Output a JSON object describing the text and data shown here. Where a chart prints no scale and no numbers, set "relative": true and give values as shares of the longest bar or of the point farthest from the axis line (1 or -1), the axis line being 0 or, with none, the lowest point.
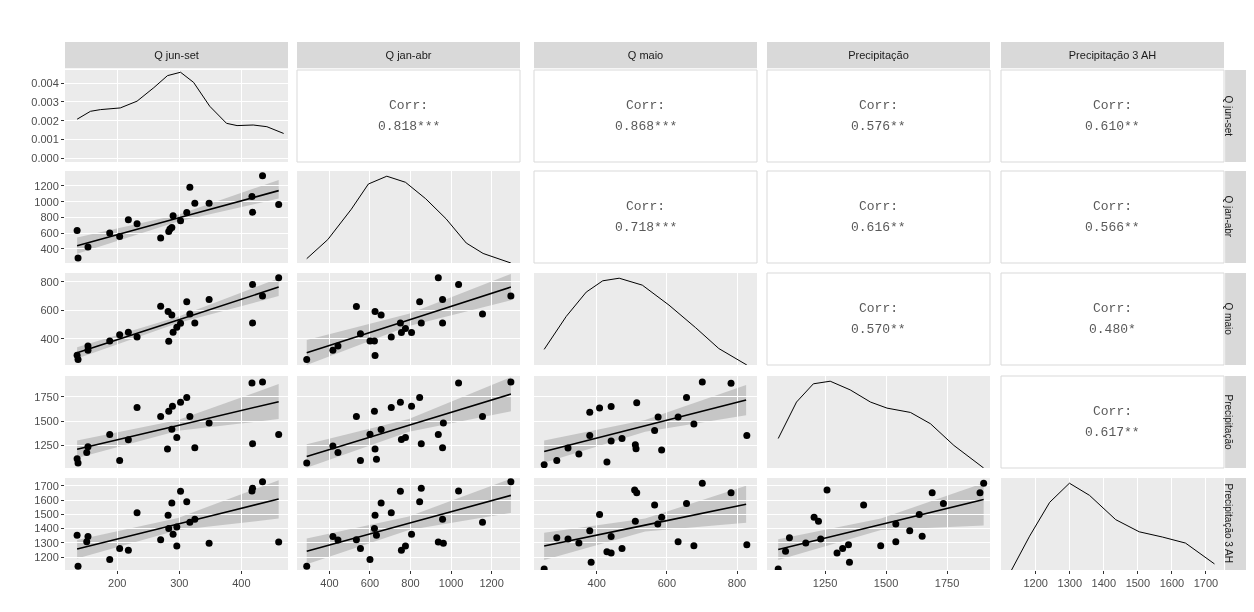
{
  "chart_data": [
    {
      "type": "line",
      "title": "Q jun-set",
      "xlim": [
        116,
        475
      ],
      "xticks": [
        200,
        300,
        400
      ],
      "ylim": [
        -0.0002,
        0.0047
      ],
      "yticks": [
        {
          "value": 0,
          "label": "0.000"
        },
        0.001,
        0.002,
        0.003,
        0.004
      ],
      "tick_labels": "y",
      "grid": true,
      "color": "#000000",
      "x": [
        135.5,
        157,
        173,
        205,
        232,
        259,
        281,
        302,
        323,
        349,
        376,
        393,
        419,
        441,
        468
      ],
      "values": [
        0.00208,
        0.0025,
        0.00259,
        0.00268,
        0.00304,
        0.00376,
        0.0044,
        0.00458,
        0.00404,
        0.00277,
        0.00186,
        0.00174,
        0.00177,
        0.00168,
        0.00132
      ]
    },
    {
      "type": "other",
      "title": "Q jan-abr",
      "annotations": [
        "Corr:",
        "0.818***"
      ]
    },
    {
      "type": "other",
      "title": "Q maio",
      "annotations": [
        "Corr:",
        "0.868***"
      ]
    },
    {
      "type": "other",
      "title": "Precipitação",
      "annotations": [
        "Corr:",
        "0.576**"
      ]
    },
    {
      "type": "other",
      "title": "Precipitação 3 AH",
      "y2label": "Q jun-set",
      "annotations": [
        "Corr:",
        "0.610**"
      ]
    },
    {
      "type": "scatter",
      "xlim": [
        116,
        475
      ],
      "xticks": [
        200,
        300,
        400
      ],
      "ylim": [
        222,
        1390
      ],
      "yticks": [
        400,
        600,
        800,
        1000,
        1200
      ],
      "tick_labels": "y",
      "grid": true,
      "series": [
        {
          "type": "scatter",
          "marker": "circle",
          "color": "#000000",
          "x": [
            135.5,
            137,
            153,
            188,
            204,
            218,
            232,
            270,
            283,
            285,
            288,
            290,
            302,
            312,
            317,
            325,
            348,
            418,
            417,
            434,
            460
          ],
          "values": [
            636,
            286,
            425,
            602,
            560,
            770,
            720,
            539,
            623,
            653,
            674,
            821,
            758,
            863,
            1183,
            981,
            981,
            867,
            1065,
            1330,
            964
          ]
        },
        {
          "type": "line",
          "color": "#000000",
          "x": [
            135.5,
            298,
            460
          ],
          "values": [
            442,
            792,
            1141
          ],
          "lower": [
            340,
            750,
            1040
          ],
          "upper": [
            545,
            835,
            1275
          ]
        }
      ]
    },
    {
      "type": "line",
      "xlim": [
        240,
        1340
      ],
      "xticks": [
        400,
        600,
        800,
        1000,
        1200
      ],
      "relative": true,
      "tick_labels": false,
      "grid": "x",
      "color": "#000000",
      "x": [
        288,
        392,
        508,
        592,
        683,
        775,
        875,
        975,
        1075,
        1158,
        1295
      ],
      "values": [
        0.05,
        0.27,
        0.62,
        0.91,
        1,
        0.93,
        0.74,
        0.51,
        0.23,
        0.11,
        0
      ]
    },
    {
      "type": "other",
      "annotations": [
        "Corr:",
        "0.718***"
      ]
    },
    {
      "type": "other",
      "annotations": [
        "Corr:",
        "0.616**"
      ]
    },
    {
      "type": "other",
      "y2label": "Q jan-abr",
      "annotations": [
        "Corr:",
        "0.566**"
      ]
    },
    {
      "type": "scatter",
      "xlim": [
        116,
        475
      ],
      "xticks": [
        200,
        300,
        400
      ],
      "ylim": [
        215,
        862
      ],
      "yticks": [
        400,
        600,
        800
      ],
      "tick_labels": "y",
      "grid": true,
      "series": [
        {
          "type": "scatter",
          "marker": "circle",
          "color": "#000000",
          "x": [
            135.5,
            137,
            153,
            153,
            188,
            204,
            218,
            232,
            270,
            282,
            288,
            283,
            290,
            296,
            302,
            312,
            317,
            325,
            348,
            418,
            418,
            434,
            460
          ],
          "values": [
            284,
            254,
            349,
            319,
            384,
            428,
            446,
            412,
            629,
            592,
            566,
            382,
            446,
            481,
            509,
            659,
            573,
            511,
            675,
            781,
            511,
            701,
            828
          ]
        },
        {
          "type": "line",
          "color": "#000000",
          "x": [
            135.5,
            298,
            460
          ],
          "values": [
            301,
            532,
            763
          ],
          "lower": [
            260,
            510,
            700
          ],
          "upper": [
            340,
            555,
            825
          ]
        }
      ]
    },
    {
      "type": "scatter",
      "xlim": [
        240,
        1340
      ],
      "xticks": [
        400,
        600,
        800,
        1000,
        1200
      ],
      "ylim": [
        215,
        862
      ],
      "yticks": [
        400,
        600,
        800
      ],
      "tick_labels": false,
      "grid": true,
      "series": [
        {
          "type": "scatter",
          "marker": "circle",
          "color": "#000000",
          "x": [
            288,
            417,
            442,
            533,
            553,
            600,
            622,
            625,
            655,
            625,
            705,
            750,
            755,
            775,
            805,
            845,
            853,
            937,
            958,
            958,
            1037,
            1155,
            1295
          ],
          "values": [
            254,
            319,
            349,
            627,
            435,
            384,
            384,
            592,
            566,
            282,
            412,
            511,
            444,
            472,
            444,
            659,
            511,
            828,
            675,
            511,
            781,
            573,
            701
          ]
        },
        {
          "type": "line",
          "color": "#000000",
          "x": [
            288,
            792,
            1295
          ],
          "values": [
            301,
            532,
            763
          ],
          "lower": [
            215,
            490,
            670
          ],
          "upper": [
            390,
            575,
            855
          ]
        }
      ]
    },
    {
      "type": "line",
      "xlim": [
        221,
        857
      ],
      "xticks": [
        400,
        600,
        800
      ],
      "relative": true,
      "tick_labels": false,
      "grid": "x",
      "color": "#000000",
      "x": [
        250,
        313,
        370,
        417,
        464,
        530,
        606,
        682,
        748,
        828
      ],
      "values": [
        0.18,
        0.56,
        0.84,
        0.97,
        1,
        0.92,
        0.69,
        0.43,
        0.19,
        0
      ]
    },
    {
      "type": "other",
      "annotations": [
        "Corr:",
        "0.570**"
      ]
    },
    {
      "type": "other",
      "y2label": "Q maio",
      "annotations": [
        "Corr:",
        "0.480*"
      ]
    },
    {
      "type": "scatter",
      "xlim": [
        116,
        475
      ],
      "xticks": [
        200,
        300,
        400
      ],
      "ylim": [
        1017,
        1963
      ],
      "yticks": [
        1250,
        1500,
        1750
      ],
      "tick_labels": "y",
      "grid": true,
      "series": [
        {
          "type": "scatter",
          "marker": "circle",
          "color": "#000000",
          "x": [
            135.5,
            137,
            151,
            153,
            188,
            204,
            218,
            232,
            270,
            283,
            289,
            288,
            296,
            302,
            281,
            312,
            317,
            325,
            348,
            417,
            434,
            418,
            460
          ],
          "values": [
            1111,
            1068,
            1176,
            1236,
            1361,
            1095,
            1307,
            1638,
            1547,
            1601,
            1652,
            1416,
            1331,
            1693,
            1213,
            1743,
            1547,
            1226,
            1480,
            1892,
            1902,
            1267,
            1361
          ]
        },
        {
          "type": "line",
          "color": "#000000",
          "x": [
            135.5,
            298,
            460
          ],
          "values": [
            1209,
            1454,
            1699
          ],
          "lower": [
            1120,
            1400,
            1520
          ],
          "upper": [
            1300,
            1510,
            1880
          ]
        }
      ]
    },
    {
      "type": "scatter",
      "xlim": [
        240,
        1340
      ],
      "xticks": [
        400,
        600,
        800,
        1000,
        1200
      ],
      "ylim": [
        1017,
        1963
      ],
      "yticks": [
        1250,
        1500,
        1750
      ],
      "tick_labels": false,
      "grid": true,
      "series": [
        {
          "type": "scatter",
          "marker": "circle",
          "color": "#000000",
          "x": [
            288,
            417,
            442,
            533,
            553,
            600,
            622,
            625,
            632,
            655,
            705,
            750,
            755,
            775,
            805,
            845,
            853,
            937,
            962,
            958,
            1037,
            1155,
            1295
          ],
          "values": [
            1068,
            1243,
            1176,
            1547,
            1095,
            1365,
            1601,
            1213,
            1108,
            1412,
            1638,
            1693,
            1311,
            1331,
            1652,
            1743,
            1267,
            1361,
            1480,
            1226,
            1892,
            1547,
            1902
          ]
        },
        {
          "type": "line",
          "color": "#000000",
          "x": [
            288,
            792,
            1295
          ],
          "values": [
            1135,
            1456,
            1777
          ],
          "lower": [
            1020,
            1390,
            1600
          ],
          "upper": [
            1260,
            1520,
            1950
          ]
        }
      ]
    },
    {
      "type": "scatter",
      "xlim": [
        221,
        857
      ],
      "xticks": [
        400,
        600,
        800
      ],
      "ylim": [
        1017,
        1963
      ],
      "yticks": [
        1250,
        1500,
        1750
      ],
      "tick_labels": false,
      "grid": true,
      "series": [
        {
          "type": "scatter",
          "marker": "circle",
          "color": "#000000",
          "x": [
            250,
            286,
            318,
            349,
            380,
            408,
            441,
            380,
            441,
            472,
            429,
            510,
            512,
            514,
            565,
            575,
            585,
            632,
            656,
            677,
            701,
            783,
            828
          ],
          "values": [
            1051,
            1095,
            1223,
            1162,
            1591,
            1635,
            1649,
            1351,
            1294,
            1321,
            1078,
            1257,
            1216,
            1689,
            1402,
            1541,
            1203,
            1541,
            1743,
            1470,
            1902,
            1888,
            1351
          ]
        },
        {
          "type": "line",
          "color": "#000000",
          "x": [
            250,
            538,
            826
          ],
          "values": [
            1186,
            1451,
            1716
          ],
          "lower": [
            1070,
            1390,
            1560
          ],
          "upper": [
            1300,
            1510,
            1870
          ]
        }
      ]
    },
    {
      "type": "line",
      "xlim": [
        1012,
        1926
      ],
      "xticks": [
        1250,
        1500,
        1750
      ],
      "relative": true,
      "tick_labels": false,
      "grid": "x",
      "color": "#000000",
      "x": [
        1058,
        1133,
        1202,
        1271,
        1353,
        1436,
        1504,
        1600,
        1682,
        1778,
        1900
      ],
      "values": [
        0.34,
        0.76,
        0.97,
        1,
        0.9,
        0.76,
        0.69,
        0.64,
        0.51,
        0.26,
        0
      ]
    },
    {
      "type": "other",
      "y2label": "Precipitação",
      "annotations": [
        "Corr:",
        "0.617**"
      ]
    },
    {
      "type": "scatter",
      "xlim": [
        116,
        475
      ],
      "xticks": [
        200,
        300,
        400
      ],
      "ylim": [
        1109,
        1755
      ],
      "yticks": [
        1200,
        1300,
        1400,
        1500,
        1600,
        1700
      ],
      "grid": true,
      "series": [
        {
          "type": "scatter",
          "marker": "circle",
          "color": "#000000",
          "x": [
            135.5,
            137,
            151,
            153,
            188,
            204,
            218,
            232,
            270,
            282,
            283,
            288,
            290,
            296,
            302,
            296,
            312,
            317,
            325,
            348,
            417,
            418,
            434,
            460
          ],
          "values": [
            1353,
            1135,
            1308,
            1344,
            1183,
            1260,
            1248,
            1511,
            1322,
            1494,
            1401,
            1580,
            1360,
            1411,
            1662,
            1277,
            1588,
            1444,
            1465,
            1296,
            1664,
            1683,
            1729,
            1305
          ]
        },
        {
          "type": "line",
          "color": "#000000",
          "x": [
            135.5,
            298,
            460
          ],
          "values": [
            1257,
            1432,
            1607
          ],
          "lower": [
            1190,
            1390,
            1470
          ],
          "upper": [
            1320,
            1475,
            1740
          ]
        }
      ]
    },
    {
      "type": "scatter",
      "xlim": [
        240,
        1340
      ],
      "xticks": [
        400,
        600,
        800,
        1000,
        1200
      ],
      "ylim": [
        1109,
        1755
      ],
      "yticks": [
        1200,
        1300,
        1400,
        1500,
        1600,
        1700
      ],
      "tick_labels": "x",
      "grid": true,
      "series": [
        {
          "type": "scatter",
          "marker": "circle",
          "color": "#000000",
          "x": [
            288,
            417,
            442,
            533,
            553,
            600,
            622,
            625,
            632,
            655,
            705,
            750,
            755,
            775,
            805,
            853,
            845,
            937,
            962,
            958,
            1037,
            1155,
            1295
          ],
          "values": [
            1135,
            1344,
            1320,
            1322,
            1260,
            1183,
            1401,
            1494,
            1353,
            1580,
            1511,
            1662,
            1248,
            1277,
            1360,
            1683,
            1588,
            1305,
            1296,
            1465,
            1664,
            1444,
            1729
          ]
        },
        {
          "type": "line",
          "color": "#000000",
          "x": [
            288,
            792,
            1295
          ],
          "values": [
            1241,
            1437,
            1633
          ],
          "lower": [
            1150,
            1390,
            1510
          ],
          "upper": [
            1330,
            1485,
            1750
          ]
        }
      ]
    },
    {
      "type": "scatter",
      "xlim": [
        221,
        857
      ],
      "xticks": [
        400,
        600,
        800
      ],
      "ylim": [
        1109,
        1755
      ],
      "yticks": [
        1200,
        1300,
        1400,
        1500,
        1600,
        1700
      ],
      "tick_labels": "x",
      "grid": true,
      "series": [
        {
          "type": "scatter",
          "marker": "circle",
          "color": "#000000",
          "x": [
            250,
            286,
            318,
            349,
            380,
            408,
            441,
            429,
            441,
            384,
            472,
            510,
            508,
            514,
            565,
            574,
            585,
            632,
            656,
            677,
            701,
            783,
            828
          ],
          "values": [
            1116,
            1336,
            1327,
            1298,
            1384,
            1499,
            1344,
            1238,
            1229,
            1164,
            1260,
            1451,
            1671,
            1652,
            1566,
            1432,
            1480,
            1308,
            1576,
            1279,
            1719,
            1652,
            1286
          ]
        },
        {
          "type": "line",
          "color": "#000000",
          "x": [
            250,
            538,
            826
          ],
          "values": [
            1277,
            1424,
            1571
          ],
          "lower": [
            1180,
            1380,
            1440
          ],
          "upper": [
            1370,
            1470,
            1700
          ]
        }
      ]
    },
    {
      "type": "scatter",
      "xlim": [
        1012,
        1926
      ],
      "xticks": [
        1250,
        1500,
        1750
      ],
      "ylim": [
        1109,
        1755
      ],
      "yticks": [
        1200,
        1300,
        1400,
        1500,
        1600,
        1700
      ],
      "tick_labels": "x",
      "grid": true,
      "series": [
        {
          "type": "scatter",
          "marker": "circle",
          "color": "#000000",
          "x": [
            1058,
            1088,
            1104,
            1171,
            1205,
            1223,
            1232,
            1258,
            1299,
            1322,
            1346,
            1350,
            1408,
            1478,
            1540,
            1540,
            1597,
            1636,
            1648,
            1689,
            1735,
            1885,
            1900
          ],
          "values": [
            1116,
            1241,
            1336,
            1298,
            1480,
            1451,
            1327,
            1671,
            1229,
            1260,
            1286,
            1164,
            1566,
            1279,
            1432,
            1308,
            1384,
            1499,
            1346,
            1652,
            1576,
            1652,
            1719
          ]
        },
        {
          "type": "line",
          "color": "#000000",
          "x": [
            1058,
            1479,
            1900
          ],
          "values": [
            1253,
            1428,
            1604
          ],
          "lower": [
            1180,
            1390,
            1421
          ],
          "upper": [
            1325,
            1470,
            1720
          ]
        }
      ]
    },
    {
      "type": "line",
      "xlim": [
        1098,
        1753
      ],
      "xticks": [
        1200,
        1300,
        1400,
        1500,
        1600,
        1700
      ],
      "relative": true,
      "tick_labels": "x",
      "grid": "x",
      "y2label": "Precipitação 3 AH",
      "color": "#000000",
      "x": [
        1129,
        1182,
        1241,
        1299,
        1358,
        1435,
        1504,
        1572,
        1640,
        1725
      ],
      "values": [
        0,
        0.39,
        0.78,
        1,
        0.86,
        0.58,
        0.44,
        0.38,
        0.31,
        0.07
      ]
    }
  ]
}
